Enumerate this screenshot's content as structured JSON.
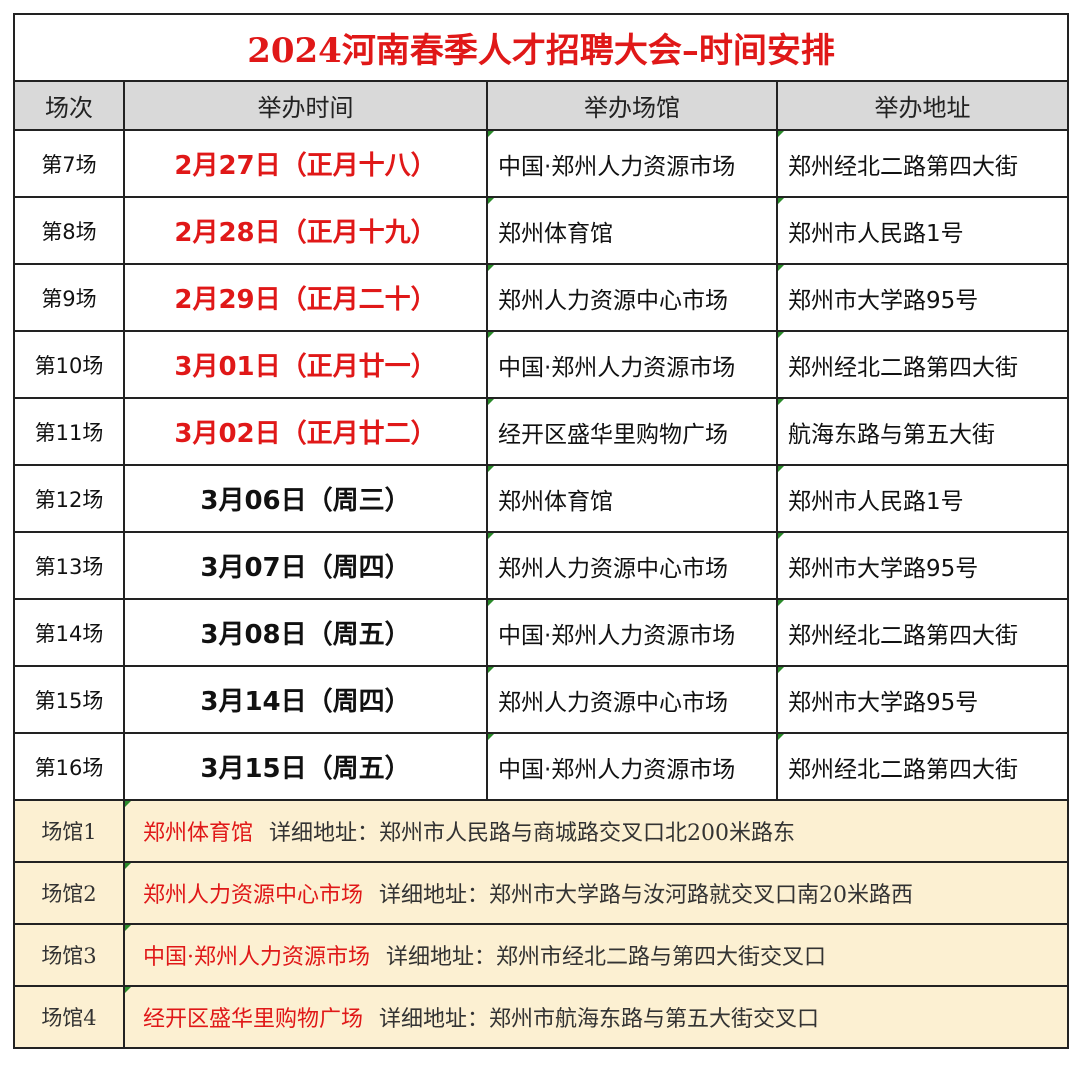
{
  "title": "2024河南春季人才招聘大会–时间安排",
  "headers": [
    "场次",
    "举办时间",
    "举办场馆",
    "举办地址"
  ],
  "rows": [
    {
      "session": "第7场",
      "date": "2月27日（正月十八）",
      "highlight": true,
      "venue": "中国·郑州人力资源市场",
      "address": "郑州经北二路第四大街"
    },
    {
      "session": "第8场",
      "date": "2月28日（正月十九）",
      "highlight": true,
      "venue": "郑州体育馆",
      "address": "郑州市人民路1号"
    },
    {
      "session": "第9场",
      "date": "2月29日（正月二十）",
      "highlight": true,
      "venue": "郑州人力资源中心市场",
      "address": "郑州市大学路95号"
    },
    {
      "session": "第10场",
      "date": "3月01日（正月廿一）",
      "highlight": true,
      "venue": "中国·郑州人力资源市场",
      "address": "郑州经北二路第四大街"
    },
    {
      "session": "第11场",
      "date": "3月02日（正月廿二）",
      "highlight": true,
      "venue": "经开区盛华里购物广场",
      "address": "航海东路与第五大街"
    },
    {
      "session": "第12场",
      "date": "3月06日（周三）",
      "highlight": false,
      "venue": "郑州体育馆",
      "address": "郑州市人民路1号"
    },
    {
      "session": "第13场",
      "date": "3月07日（周四）",
      "highlight": false,
      "venue": "郑州人力资源中心市场",
      "address": "郑州市大学路95号"
    },
    {
      "session": "第14场",
      "date": "3月08日（周五）",
      "highlight": false,
      "venue": "中国·郑州人力资源市场",
      "address": "郑州经北二路第四大街"
    },
    {
      "session": "第15场",
      "date": "3月14日（周四）",
      "highlight": false,
      "venue": "郑州人力资源中心市场",
      "address": "郑州市大学路95号"
    },
    {
      "session": "第16场",
      "date": "3月15日（周五）",
      "highlight": false,
      "venue": "中国·郑州人力资源市场",
      "address": "郑州经北二路第四大街"
    }
  ],
  "venues": [
    {
      "label": "场馆1",
      "name": "郑州体育馆",
      "detail": "详细地址：郑州市人民路与商城路交叉口北200米路东"
    },
    {
      "label": "场馆2",
      "name": "郑州人力资源中心市场",
      "detail": "详细地址：郑州市大学路与汝河路就交叉口南20米路西"
    },
    {
      "label": "场馆3",
      "name": "中国·郑州人力资源市场",
      "detail": "详细地址：郑州市经北二路与第四大街交叉口"
    },
    {
      "label": "场馆4",
      "name": "经开区盛华里购物广场",
      "detail": "详细地址：郑州市航海东路与第五大街交叉口"
    }
  ],
  "colors": {
    "accent_red": "#e01818",
    "header_bg": "#d9d9d9",
    "venue_bg": "#fcf0d2"
  }
}
